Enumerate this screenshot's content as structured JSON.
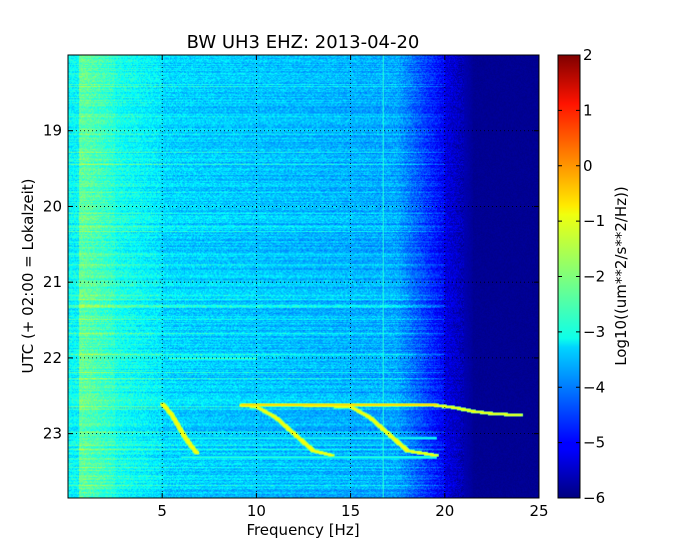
{
  "chart_data": {
    "type": "heatmap",
    "title": "BW UH3 EHZ: 2013-04-20",
    "xlabel": "Frequency [Hz]",
    "ylabel": "UTC (+ 02:00 = Lokalzeit)",
    "xlim": [
      0,
      25
    ],
    "ylim": [
      23.85,
      18.0
    ],
    "xticks": [
      5,
      10,
      15,
      20,
      25
    ],
    "yticks": [
      19,
      20,
      21,
      22,
      23
    ],
    "grid": true,
    "colorbar": {
      "label": "Log10((um**2/s**2/Hz))",
      "range": [
        -6,
        2
      ],
      "ticks": [
        2,
        1,
        0,
        -1,
        -2,
        -3,
        -4,
        -5,
        -6
      ],
      "colormap": "jet"
    },
    "features": {
      "cutoff_hz": 20,
      "vertical_line_hz": 16.7,
      "chirps": [
        {
          "points": [
            [
              9.2,
              22.62
            ],
            [
              10,
              22.64
            ],
            [
              11,
              22.78
            ],
            [
              12,
              23.0
            ],
            [
              13,
              23.22
            ],
            [
              14,
              23.28
            ]
          ]
        },
        {
          "points": [
            [
              12.5,
              22.62
            ],
            [
              15,
              22.64
            ],
            [
              16,
              22.78
            ],
            [
              17,
              23.0
            ],
            [
              18,
              23.22
            ],
            [
              19.5,
              23.28
            ]
          ]
        },
        {
          "points": [
            [
              5,
              22.6
            ],
            [
              5.5,
              22.75
            ],
            [
              6.2,
              23.05
            ],
            [
              6.8,
              23.25
            ]
          ]
        },
        {
          "points": [
            [
              19.5,
              22.62
            ],
            [
              20.5,
              22.65
            ],
            [
              21.5,
              22.7
            ],
            [
              22.5,
              22.73
            ],
            [
              24,
              22.75
            ]
          ]
        }
      ],
      "horizontal_bands": [
        {
          "utc": 22.0,
          "from_hz": 5.3,
          "to_hz": 10,
          "level": -2.4
        },
        {
          "utc": 23.05,
          "from_hz": 5.3,
          "to_hz": 19.5,
          "level": -2.8
        },
        {
          "utc": 22.62,
          "from_hz": 9.2,
          "to_hz": 19.5,
          "level": -0.6
        },
        {
          "utc": 23.3,
          "from_hz": 6,
          "to_hz": 19.5,
          "level": -2.6
        }
      ]
    }
  }
}
